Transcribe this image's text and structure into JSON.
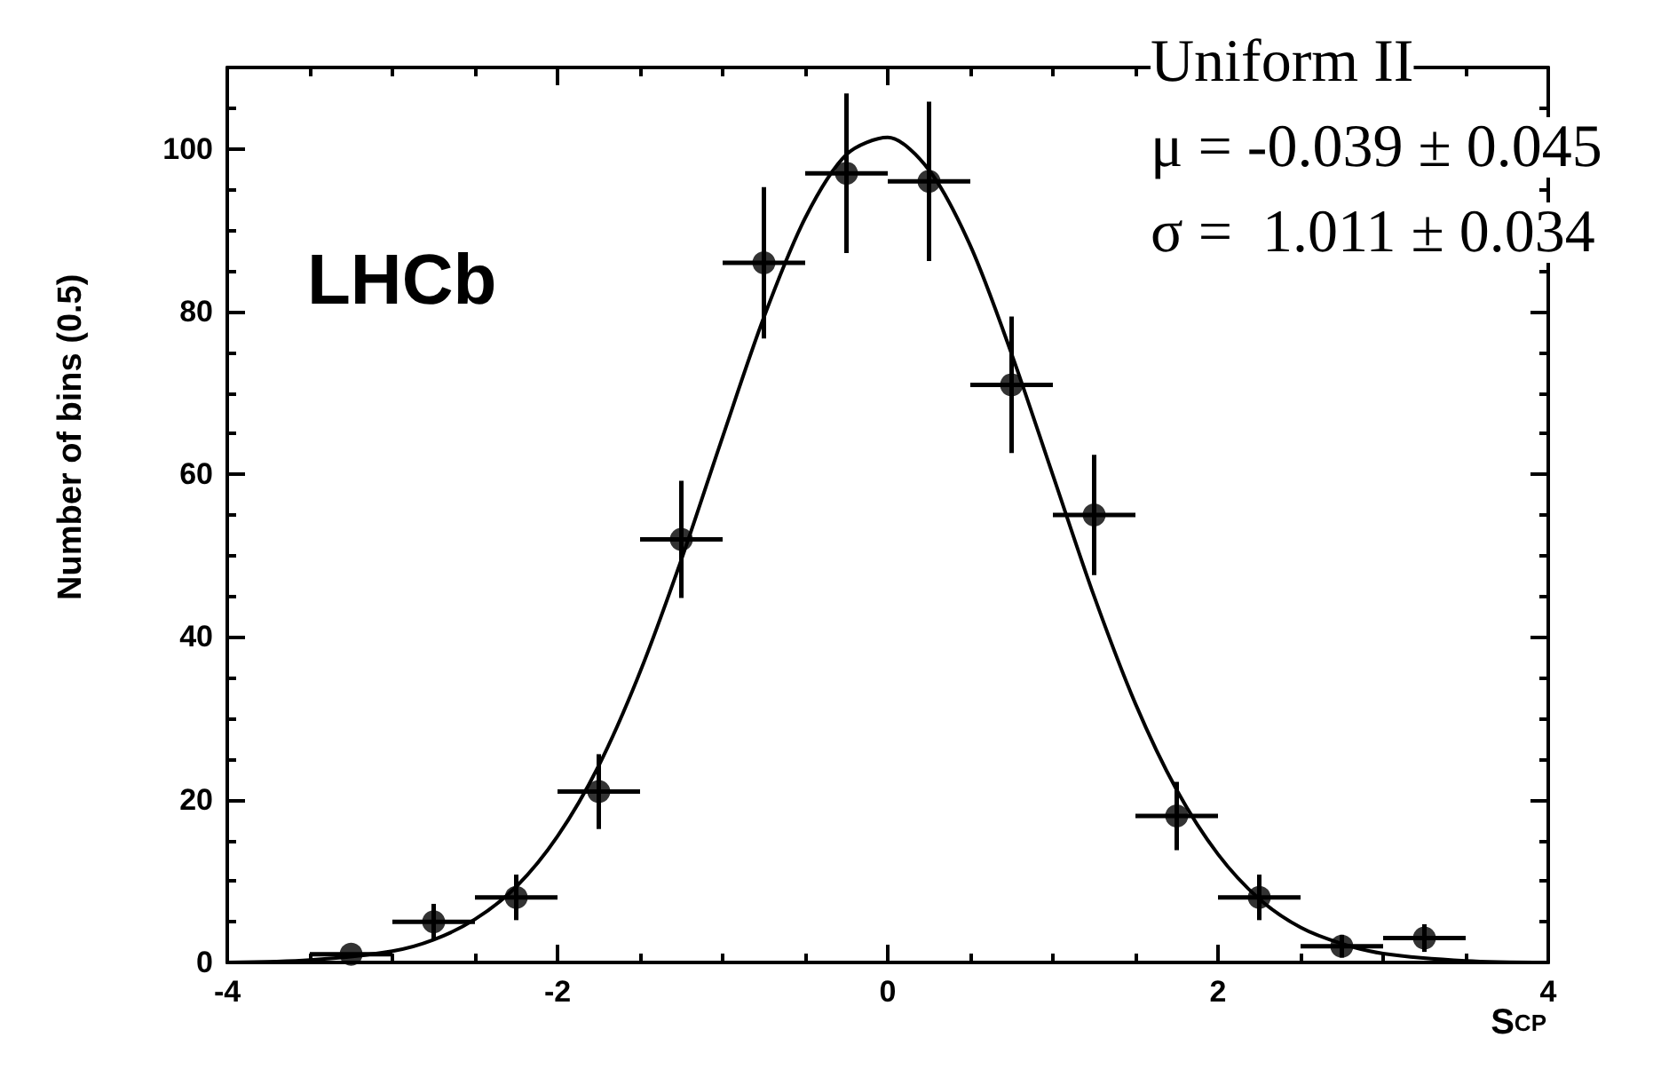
{
  "chart_data": {
    "type": "scatter",
    "xlabel": "S$_{CP}$",
    "ylabel": "Number of bins (0.5)",
    "annotations": [
      "LHCb",
      "Uniform II",
      "μ = -0.039 ± 0.045",
      "σ =  1.011 ± 0.034"
    ],
    "xlim": [
      -4,
      4
    ],
    "xticks": [
      -4,
      -2,
      0,
      2,
      4
    ],
    "ylim": [
      0,
      110
    ],
    "yticks": [
      0,
      20,
      40,
      60,
      80,
      100
    ],
    "grid": false,
    "series": [
      {
        "color": "#000000",
        "marker": "circle",
        "x": [
          -3.25,
          -2.75,
          -2.25,
          -1.75,
          -1.25,
          -0.75,
          -0.25,
          0.25,
          0.75,
          1.25,
          1.75,
          2.25,
          2.75,
          3.25
        ],
        "values": [
          1,
          5,
          8,
          21,
          52,
          86,
          97,
          96,
          71,
          55,
          18,
          8,
          2,
          3
        ],
        "errors": [
          null,
          2.2,
          2.8,
          4.6,
          7.2,
          9.3,
          9.8,
          9.8,
          8.4,
          7.4,
          4.2,
          2.8,
          1.4,
          1.7
        ],
        "xerrors": [
          0.25,
          0.25,
          0.25,
          0.25,
          0.25,
          0.25,
          0.25,
          0.25,
          0.25,
          0.25,
          0.25,
          0.25,
          0.25,
          0.25
        ]
      },
      {
        "type": "line",
        "color": "#000000",
        "line_style": "solid",
        "x": [
          -4,
          -3.5,
          -3,
          -2.75,
          -2.5,
          -2.25,
          -2,
          -1.75,
          -1.5,
          -1.25,
          -1,
          -0.75,
          -0.5,
          -0.25,
          0,
          0.25,
          0.5,
          0.75,
          1,
          1.25,
          1.5,
          1.75,
          2,
          2.25,
          2.5,
          2.75,
          3,
          3.5,
          4
        ],
        "values": [
          0,
          0.3,
          1.4,
          2.8,
          5.3,
          9.3,
          15.5,
          24.2,
          35.7,
          49.5,
          64.6,
          79.3,
          91.5,
          99.3,
          101.4,
          97.4,
          88.1,
          74.8,
          59.9,
          45,
          31.8,
          21.2,
          13.3,
          7.8,
          4.3,
          2.3,
          1.1,
          0.2,
          0
        ]
      }
    ]
  }
}
